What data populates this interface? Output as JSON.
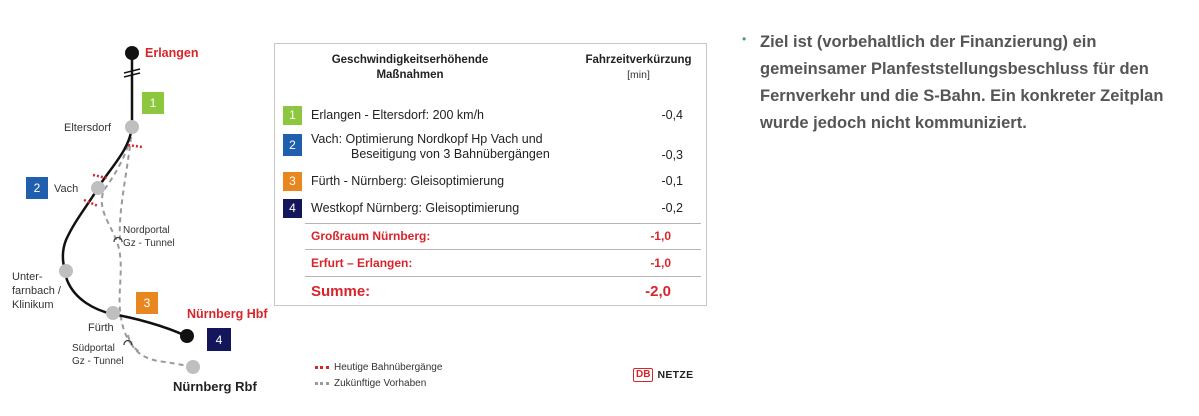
{
  "map": {
    "stations": {
      "erlangen": "Erlangen",
      "eltersdorf": "Eltersdorf",
      "vach": "Vach",
      "unterfarnbach": [
        "Unter-",
        "farnbach /",
        "Klinikum"
      ],
      "fuerth": "Fürth",
      "nuernberg_hbf": "Nürnberg Hbf",
      "nuernberg_rbf": "Nürnberg Rbf"
    },
    "portals": {
      "nord": [
        "Nordportal",
        "Gz - Tunnel"
      ],
      "sued": [
        "Südportal",
        "Gz - Tunnel"
      ]
    },
    "numbers": {
      "n1": "1",
      "n2": "2",
      "n3": "3",
      "n4": "4"
    },
    "colors": {
      "line": "#111111",
      "station": "#bfbfbf",
      "dashed": "#9a9a9a",
      "crossing": "#d7252b",
      "num1": "#8dc63f",
      "num2": "#1f5fae",
      "num3": "#e8861f",
      "num4": "#14165c"
    }
  },
  "table": {
    "header_left": [
      "Geschwindigkeitserhöhende",
      "Maßnahmen"
    ],
    "header_right": "Fahrzeitverkürzung",
    "header_unit": "[min]",
    "rows": [
      {
        "num": "1",
        "label": "Erlangen - Eltersdorf: 200 km/h",
        "value": "-0,4"
      },
      {
        "num": "2",
        "label": "Vach: Optimierung Nordkopf Hp Vach und",
        "label2": "Beseitigung von 3 Bahnübergängen",
        "value": "-0,3"
      },
      {
        "num": "3",
        "label": "Fürth - Nürnberg: Gleisoptimierung",
        "value": "-0,1"
      },
      {
        "num": "4",
        "label": "Westkopf Nürnberg: Gleisoptimierung",
        "value": "-0,2"
      }
    ],
    "grossraum": {
      "label": "Großraum Nürnberg:",
      "value": "-1,0"
    },
    "erfurt": {
      "label": "Erfurt – Erlangen:",
      "value": "-1,0"
    },
    "summe": {
      "label": "Summe:",
      "value": "-2,0"
    }
  },
  "legend": {
    "current": "Heutige Bahnübergänge",
    "future": "Zukünftige Vorhaben"
  },
  "logo": {
    "db": "DB",
    "netze": "NETZE"
  },
  "bullet": {
    "text": "Ziel ist (vorbehaltlich der Finanzierung) ein gemeinsamer Planfeststellungsbeschluss für den Fernverkehr und die S-Bahn. Ein konkreter Zeitplan wurde jedoch nicht kommuniziert."
  }
}
